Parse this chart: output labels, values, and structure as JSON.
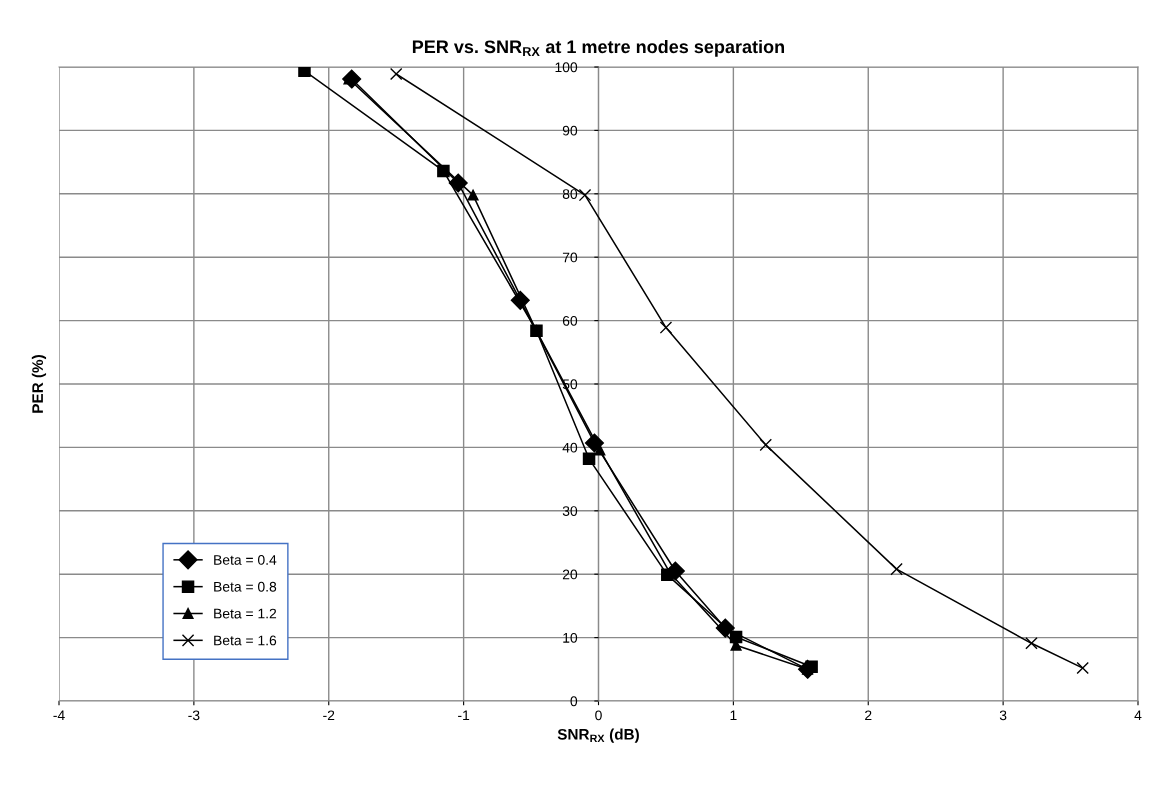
{
  "chart_data": {
    "type": "line",
    "title": "PER vs. SNR$_{RX}$ at 1 metre nodes separation",
    "xlabel": "SNR$_{RX}$ (dB)",
    "ylabel": "PER (%)",
    "xlim": [
      -4,
      4
    ],
    "xticks": [
      -4,
      -3,
      -2,
      -1,
      0,
      1,
      2,
      3,
      4
    ],
    "ylim": [
      0,
      100
    ],
    "yticks": [
      0,
      10,
      20,
      30,
      40,
      50,
      60,
      70,
      80,
      90,
      100
    ],
    "grid": true,
    "legend": "bottom left",
    "line_style": "solid",
    "series": [
      {
        "name": "Beta = 0.4",
        "color": "#000000",
        "marker": "diamond",
        "x": [
          -1.83,
          -1.04,
          -0.58,
          -0.03,
          0.57,
          0.94,
          1.55
        ],
        "values": [
          98.1,
          81.7,
          63.2,
          40.7,
          20.5,
          11.5,
          5.0
        ]
      },
      {
        "name": "Beta = 0.8",
        "color": "#000000",
        "marker": "square",
        "x": [
          -2.18,
          -1.15,
          -0.46,
          -0.07,
          0.51,
          1.02,
          1.58
        ],
        "values": [
          99.4,
          83.6,
          58.4,
          38.2,
          19.9,
          10.1,
          5.4
        ]
      },
      {
        "name": "Beta = 1.2",
        "color": "#000000",
        "marker": "triangle",
        "x": [
          -1.85,
          -0.93,
          -0.46,
          0.01,
          0.53,
          1.02,
          1.55
        ],
        "values": [
          98.1,
          79.8,
          58.4,
          39.6,
          20.2,
          8.8,
          5.0
        ]
      },
      {
        "name": "Beta = 1.6",
        "color": "#000000",
        "marker": "cross",
        "x": [
          -1.5,
          -0.1,
          0.5,
          1.24,
          2.21,
          3.21,
          3.59
        ],
        "values": [
          98.9,
          79.8,
          58.9,
          40.4,
          20.8,
          9.1,
          5.2
        ]
      }
    ]
  }
}
